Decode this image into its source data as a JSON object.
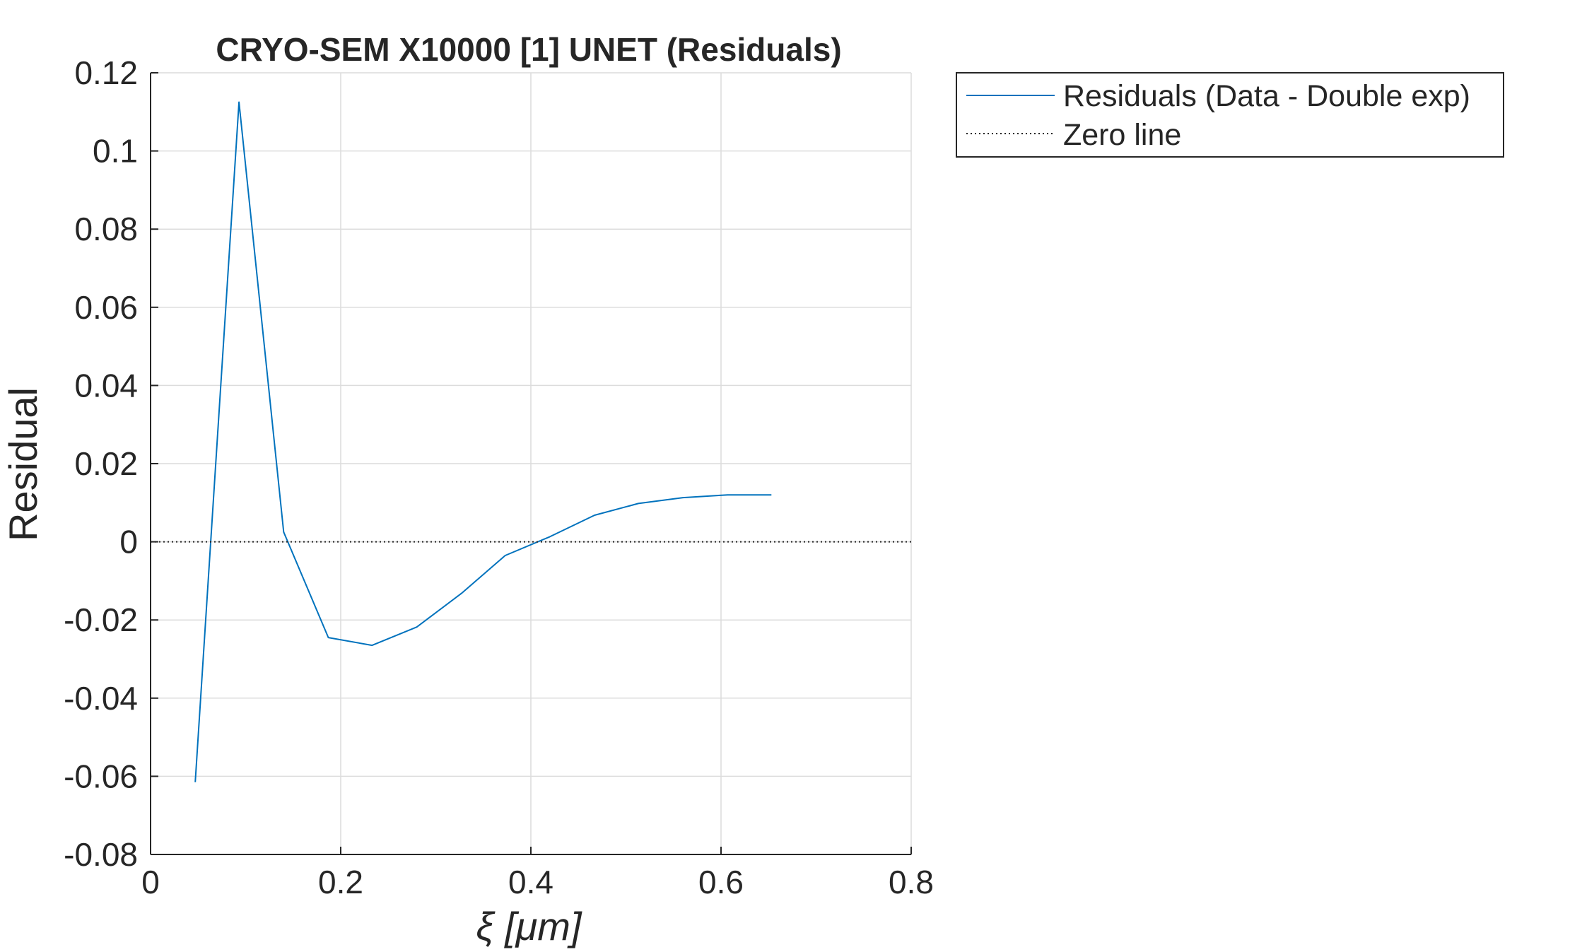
{
  "chart_data": {
    "type": "line",
    "title": "CRYO-SEM X10000 [1] UNET (Residuals)",
    "xlabel": "ξ  [μm]",
    "ylabel": "Residual",
    "xlim": [
      0,
      0.8
    ],
    "ylim": [
      -0.08,
      0.12
    ],
    "xticks": [
      0,
      0.2,
      0.4,
      0.6,
      0.8
    ],
    "xtick_labels": [
      "0",
      "0.2",
      "0.4",
      "0.6",
      "0.8"
    ],
    "yticks": [
      -0.08,
      -0.06,
      -0.04,
      -0.02,
      0,
      0.02,
      0.04,
      0.06,
      0.08,
      0.1,
      0.12
    ],
    "ytick_labels": [
      "-0.08",
      "-0.06",
      "-0.04",
      "-0.02",
      "0",
      "0.02",
      "0.04",
      "0.06",
      "0.08",
      "0.1",
      "0.12"
    ],
    "grid": true,
    "legend_position": "outside-top-right",
    "series": [
      {
        "name": "Residuals (Data - Double exp)",
        "color": "#0072BD",
        "style": "solid",
        "x": [
          0.047,
          0.093,
          0.14,
          0.187,
          0.233,
          0.28,
          0.327,
          0.373,
          0.42,
          0.467,
          0.513,
          0.56,
          0.607,
          0.653
        ],
        "y": [
          -0.0615,
          0.1125,
          0.0025,
          -0.0245,
          -0.0265,
          -0.0218,
          -0.0132,
          -0.0035,
          0.0013,
          0.0068,
          0.0098,
          0.0113,
          0.012,
          0.012
        ]
      },
      {
        "name": "Zero line",
        "color": "#262626",
        "style": "dotted",
        "x": [
          0,
          0.8
        ],
        "y": [
          0,
          0
        ]
      }
    ]
  }
}
